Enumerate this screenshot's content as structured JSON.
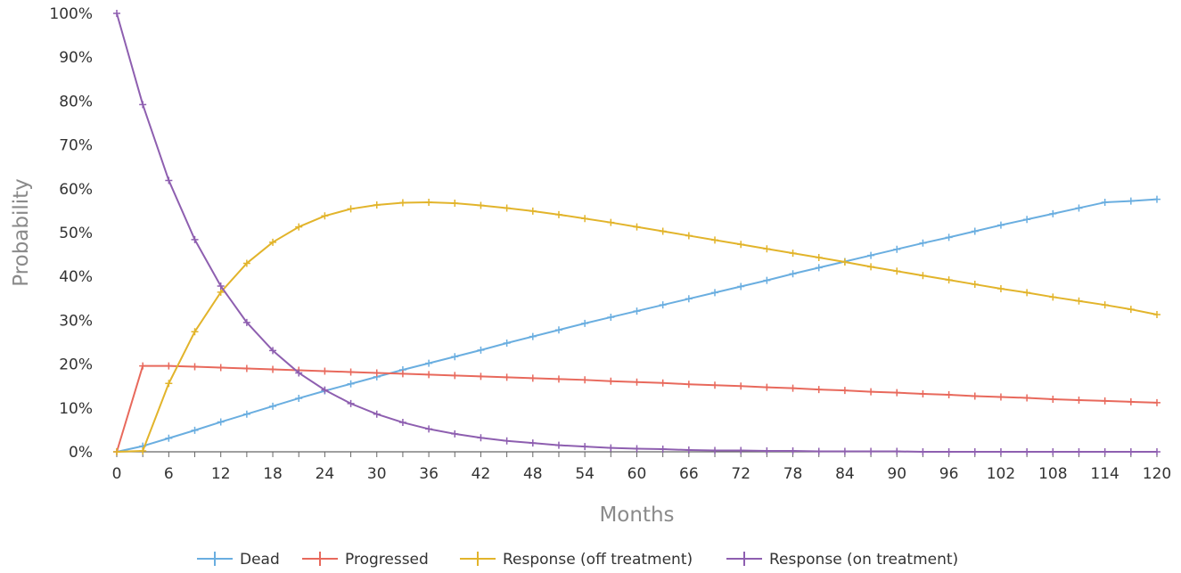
{
  "chart_data": {
    "type": "line",
    "title": "",
    "xlabel": "Months",
    "ylabel": "Probability",
    "xlim": [
      0,
      120
    ],
    "ylim": [
      0,
      100
    ],
    "x_ticks": [
      "0",
      "6",
      "12",
      "18",
      "24",
      "30",
      "36",
      "42",
      "48",
      "54",
      "60",
      "66",
      "72",
      "78",
      "84",
      "90",
      "96",
      "102",
      "108",
      "114",
      "120"
    ],
    "y_ticks": [
      "0%",
      "10%",
      "20%",
      "30%",
      "40%",
      "50%",
      "60%",
      "70%",
      "80%",
      "90%",
      "100%"
    ],
    "grid": false,
    "legend_position": "bottom",
    "x": [
      0,
      3,
      6,
      9,
      12,
      15,
      18,
      21,
      24,
      27,
      30,
      33,
      36,
      39,
      42,
      45,
      48,
      51,
      54,
      57,
      60,
      63,
      66,
      69,
      72,
      75,
      78,
      81,
      84,
      87,
      90,
      93,
      96,
      99,
      102,
      105,
      108,
      111,
      114,
      117,
      120
    ],
    "series": [
      {
        "name": "Dead",
        "color": "#6aaee0",
        "values": [
          0,
          1.3,
          3.1,
          4.9,
          6.8,
          8.6,
          10.4,
          12.2,
          13.9,
          15.5,
          17.1,
          18.7,
          20.2,
          21.7,
          23.2,
          24.8,
          26.3,
          27.8,
          29.3,
          30.7,
          32.1,
          33.5,
          34.9,
          36.3,
          37.7,
          39.1,
          40.6,
          42.0,
          43.4,
          44.8,
          46.2,
          47.6,
          48.9,
          50.3,
          51.7,
          53.0,
          54.3,
          55.6,
          56.9,
          57.2,
          57.6
        ]
      },
      {
        "name": "Progressed",
        "color": "#e8695c",
        "values": [
          0,
          19.6,
          19.6,
          19.4,
          19.2,
          19.0,
          18.8,
          18.6,
          18.4,
          18.2,
          18.0,
          17.8,
          17.6,
          17.4,
          17.2,
          17.0,
          16.8,
          16.6,
          16.4,
          16.1,
          15.9,
          15.7,
          15.4,
          15.2,
          15.0,
          14.7,
          14.5,
          14.2,
          14.0,
          13.7,
          13.5,
          13.2,
          13.0,
          12.7,
          12.5,
          12.3,
          12.0,
          11.8,
          11.6,
          11.4,
          11.2
        ]
      },
      {
        "name": "Response (off treatment)",
        "color": "#e2b42b",
        "values": [
          0,
          0.2,
          15.6,
          27.4,
          36.4,
          43.0,
          47.8,
          51.3,
          53.8,
          55.4,
          56.3,
          56.8,
          56.9,
          56.7,
          56.2,
          55.6,
          54.9,
          54.1,
          53.2,
          52.3,
          51.3,
          50.3,
          49.3,
          48.3,
          47.3,
          46.3,
          45.3,
          44.3,
          43.3,
          42.2,
          41.2,
          40.2,
          39.2,
          38.2,
          37.2,
          36.3,
          35.3,
          34.4,
          33.5,
          32.5,
          31.3
        ]
      },
      {
        "name": "Response (on treatment)",
        "color": "#8e5fb0",
        "values": [
          100,
          79.2,
          61.9,
          48.4,
          37.8,
          29.5,
          23.1,
          18.0,
          14.1,
          11.0,
          8.6,
          6.7,
          5.2,
          4.1,
          3.2,
          2.5,
          2.0,
          1.5,
          1.2,
          0.9,
          0.7,
          0.6,
          0.4,
          0.3,
          0.3,
          0.2,
          0.2,
          0.1,
          0.1,
          0.1,
          0.1,
          0.0,
          0.0,
          0.0,
          0.0,
          0.0,
          0.0,
          0.0,
          0.0,
          0.0,
          0.0
        ]
      }
    ]
  }
}
